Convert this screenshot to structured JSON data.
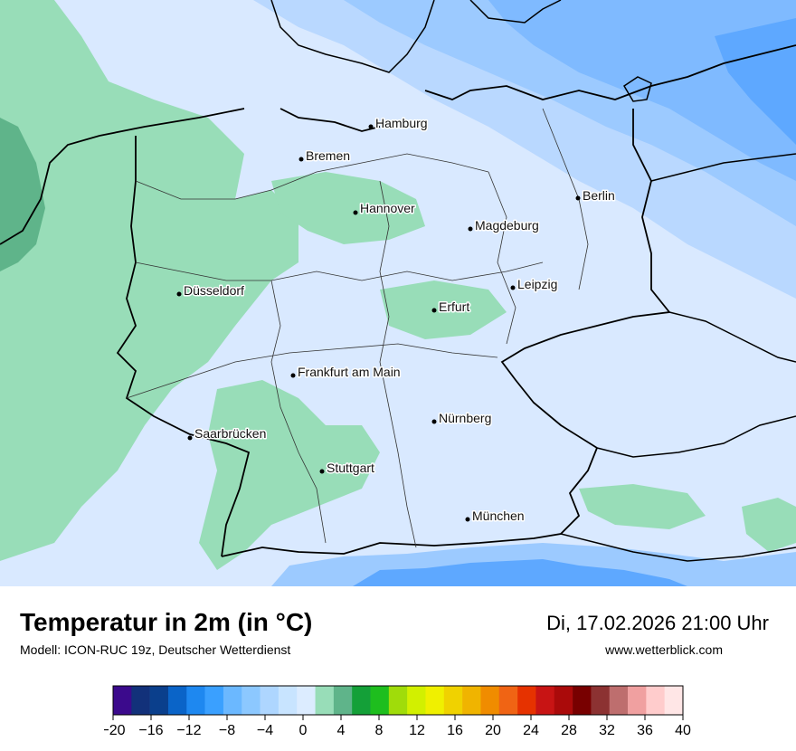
{
  "map": {
    "cities": [
      {
        "name": "Hamburg"
      },
      {
        "name": "Bremen"
      },
      {
        "name": "Berlin"
      },
      {
        "name": "Hannover"
      },
      {
        "name": "Magdeburg"
      },
      {
        "name": "Düsseldorf"
      },
      {
        "name": "Leipzig"
      },
      {
        "name": "Erfurt"
      },
      {
        "name": "Frankfurt am Main"
      },
      {
        "name": "Nürnberg"
      },
      {
        "name": "Saarbrücken"
      },
      {
        "name": "Stuttgart"
      },
      {
        "name": "München"
      }
    ]
  },
  "footer": {
    "title": "Temperatur in 2m (in °C)",
    "subtitle": "Modell: ICON-RUC 19z, Deutscher Wetterdienst",
    "datetime": "Di, 17.02.2026 21:00 Uhr",
    "source": "www.wetterblick.com"
  },
  "scale": {
    "colors": [
      "#3b0a8c",
      "#12317a",
      "#0a3f8c",
      "#0a64c8",
      "#1e88f0",
      "#3aa0ff",
      "#6bb8ff",
      "#8cc8ff",
      "#aed6ff",
      "#c8e4ff",
      "#dcecff",
      "#98ddb8",
      "#5fb48a",
      "#14a038",
      "#1ebe1e",
      "#a0dc0a",
      "#d2f000",
      "#f0f000",
      "#f0d200",
      "#f0b400",
      "#f08c00",
      "#f06414",
      "#e63200",
      "#c81414",
      "#aa0a0a",
      "#780000",
      "#8c3232",
      "#be6e6e",
      "#f0a0a0",
      "#ffcccc",
      "#ffe6e6"
    ],
    "ticks": [
      "−20",
      "−16",
      "−12",
      "−8",
      "−4",
      "0",
      "4",
      "8",
      "12",
      "16",
      "20",
      "24",
      "28",
      "32",
      "36",
      "40"
    ]
  }
}
